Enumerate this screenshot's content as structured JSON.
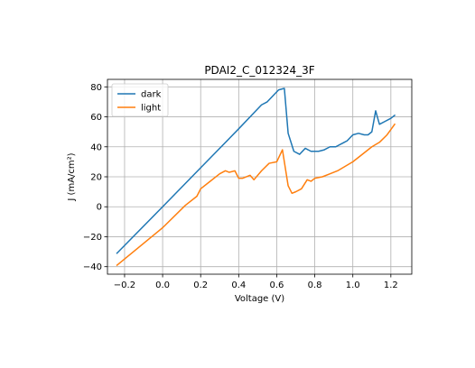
{
  "chart_data": {
    "type": "line",
    "title": "PDAI2_C_012324_3F",
    "xlabel": "Voltage (V)",
    "ylabel": "J (mA/cm²)",
    "xlim": [
      -0.29,
      1.31
    ],
    "ylim": [
      -45,
      85
    ],
    "x_ticks": [
      -0.2,
      0.0,
      0.2,
      0.4,
      0.6,
      0.8,
      1.0,
      1.2
    ],
    "x_tick_labels": [
      "−0.2",
      "0.0",
      "0.2",
      "0.4",
      "0.6",
      "0.8",
      "1.0",
      "1.2"
    ],
    "y_ticks": [
      -40,
      -20,
      0,
      20,
      40,
      60,
      80
    ],
    "y_tick_labels": [
      "−40",
      "−20",
      "0",
      "20",
      "40",
      "60",
      "80"
    ],
    "grid": true,
    "legend_position": "upper-left",
    "colors": {
      "dark": "#1f77b4",
      "light": "#ff7f0e"
    },
    "series": [
      {
        "name": "dark",
        "x": [
          -0.24,
          0.0,
          0.2,
          0.4,
          0.52,
          0.55,
          0.58,
          0.61,
          0.64,
          0.66,
          0.69,
          0.72,
          0.75,
          0.78,
          0.82,
          0.85,
          0.88,
          0.91,
          0.94,
          0.97,
          1.0,
          1.03,
          1.06,
          1.08,
          1.1,
          1.12,
          1.14,
          1.17,
          1.2,
          1.22
        ],
        "y": [
          -31,
          0,
          26,
          52,
          68,
          70,
          74,
          78,
          79,
          49,
          37,
          35,
          39,
          37,
          37,
          38,
          40,
          40,
          42,
          44,
          48,
          49,
          48,
          48,
          50,
          64,
          55,
          57,
          59,
          61
        ]
      },
      {
        "name": "light",
        "x": [
          -0.24,
          0.0,
          0.12,
          0.18,
          0.2,
          0.25,
          0.3,
          0.33,
          0.35,
          0.38,
          0.4,
          0.42,
          0.46,
          0.48,
          0.52,
          0.56,
          0.6,
          0.63,
          0.66,
          0.68,
          0.7,
          0.73,
          0.76,
          0.78,
          0.8,
          0.84,
          0.88,
          0.92,
          0.96,
          1.0,
          1.04,
          1.07,
          1.1,
          1.14,
          1.18,
          1.22
        ],
        "y": [
          -39,
          -14,
          1,
          7,
          12,
          17,
          22,
          24,
          23,
          24,
          19,
          19,
          21,
          18,
          24,
          29,
          30,
          38,
          14,
          9,
          10,
          12,
          18,
          17,
          19,
          20,
          22,
          24,
          27,
          30,
          34,
          37,
          40,
          43,
          48,
          55
        ]
      }
    ]
  }
}
